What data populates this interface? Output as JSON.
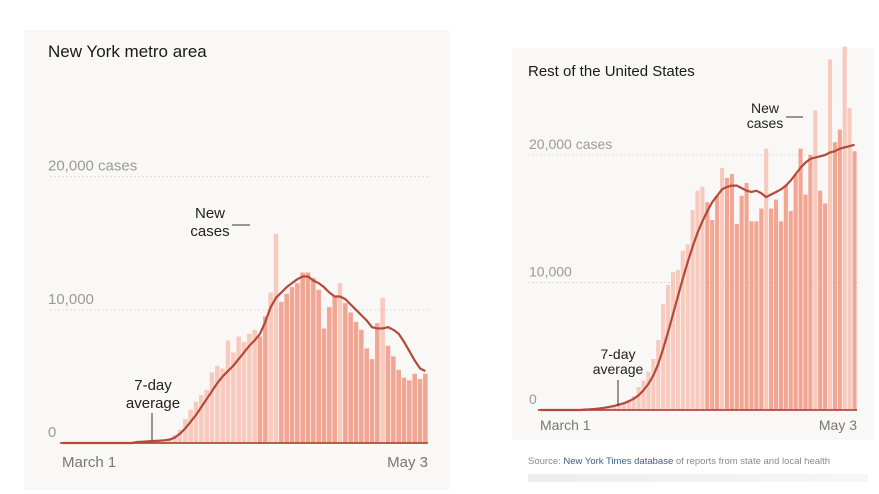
{
  "colors": {
    "bar": "#f2a592",
    "bar_light": "#f7cabd",
    "line": "#b24a3a",
    "grid": "#dddddd",
    "tick_text": "#9a9a9a",
    "annotation": "#222222"
  },
  "source": {
    "label": "Source:",
    "link": "New York Times database",
    "rest": "of reports from state and local health"
  },
  "chart_data": [
    {
      "type": "bar",
      "title": "New York metro area",
      "yticks": [
        {
          "value": 0,
          "label": "0"
        },
        {
          "value": 10000,
          "label": "10,000"
        },
        {
          "value": 20000,
          "label": "20,000 cases"
        }
      ],
      "ylim": [
        0,
        22000
      ],
      "x_start_label": "March 1",
      "x_end_label": "May 3",
      "annotations": {
        "bars_label": [
          "New",
          "cases"
        ],
        "line_label": [
          "7-day",
          "average"
        ]
      },
      "values": [
        0,
        0,
        0,
        0,
        0,
        0,
        0,
        0,
        0,
        0,
        0,
        0,
        0,
        0,
        100,
        150,
        150,
        200,
        200,
        250,
        350,
        600,
        1000,
        1800,
        2500,
        3100,
        3600,
        4000,
        5300,
        5800,
        5600,
        7700,
        6800,
        8000,
        7600,
        8200,
        8500,
        8000,
        9500,
        11300,
        15700,
        10600,
        11200,
        11700,
        12000,
        12800,
        12800,
        12400,
        11500,
        8600,
        10200,
        11000,
        12000,
        10500,
        9800,
        9100,
        8500,
        7100,
        6300,
        9000,
        10900,
        7300,
        6500,
        5500,
        4900,
        4700,
        5200,
        4800,
        5200
      ],
      "average": [
        0,
        0,
        0,
        0,
        0,
        0,
        0,
        0,
        0,
        0,
        0,
        0,
        0,
        0,
        80,
        100,
        120,
        150,
        170,
        200,
        250,
        400,
        700,
        1100,
        1600,
        2100,
        2700,
        3300,
        3900,
        4500,
        5000,
        5400,
        5800,
        6300,
        6800,
        7300,
        7700,
        8200,
        9100,
        10200,
        10900,
        11300,
        11700,
        12000,
        12300,
        12500,
        12500,
        12200,
        12000,
        11700,
        11300,
        11000,
        11000,
        10800,
        10400,
        10000,
        9600,
        9200,
        8700,
        8600,
        8600,
        8700,
        8500,
        8200,
        7600,
        6900,
        6200,
        5600,
        5400
      ]
    },
    {
      "type": "bar",
      "title": "Rest of the United States",
      "yticks": [
        {
          "value": 0,
          "label": "0"
        },
        {
          "value": 10000,
          "label": "10,000"
        },
        {
          "value": 20000,
          "label": "20,000 cases"
        }
      ],
      "ylim": [
        0,
        28000
      ],
      "x_start_label": "March 1",
      "x_end_label": "May 3",
      "annotations": {
        "bars_label": [
          "New",
          "cases"
        ],
        "line_label": [
          "7-day",
          "average"
        ]
      },
      "values": [
        0,
        0,
        0,
        0,
        0,
        0,
        0,
        0,
        0,
        50,
        80,
        100,
        150,
        200,
        300,
        400,
        500,
        600,
        800,
        1100,
        1800,
        2300,
        3000,
        4000,
        5500,
        8300,
        9800,
        10800,
        11000,
        12500,
        13000,
        15700,
        17200,
        17500,
        16300,
        14900,
        16800,
        19000,
        18200,
        18500,
        14600,
        16800,
        17800,
        14800,
        14800,
        15800,
        20500,
        15800,
        16500,
        14800,
        17600,
        15600,
        18500,
        20500,
        16900,
        20000,
        23500,
        17200,
        16200,
        27500,
        21000,
        22000,
        28500,
        23700,
        20300
      ],
      "average": [
        0,
        0,
        0,
        0,
        0,
        0,
        0,
        0,
        0,
        30,
        50,
        80,
        120,
        170,
        240,
        320,
        420,
        530,
        680,
        880,
        1150,
        1550,
        2050,
        2700,
        3600,
        4800,
        6100,
        7500,
        8900,
        10300,
        11600,
        12800,
        13900,
        14800,
        15600,
        16300,
        16800,
        17300,
        17500,
        17600,
        17600,
        17400,
        17200,
        17100,
        17200,
        17000,
        16700,
        16900,
        17100,
        17300,
        17600,
        18000,
        18500,
        19000,
        19400,
        19700,
        19800,
        19900,
        20000,
        20200,
        20300,
        20500,
        20600,
        20700,
        20800
      ]
    }
  ]
}
